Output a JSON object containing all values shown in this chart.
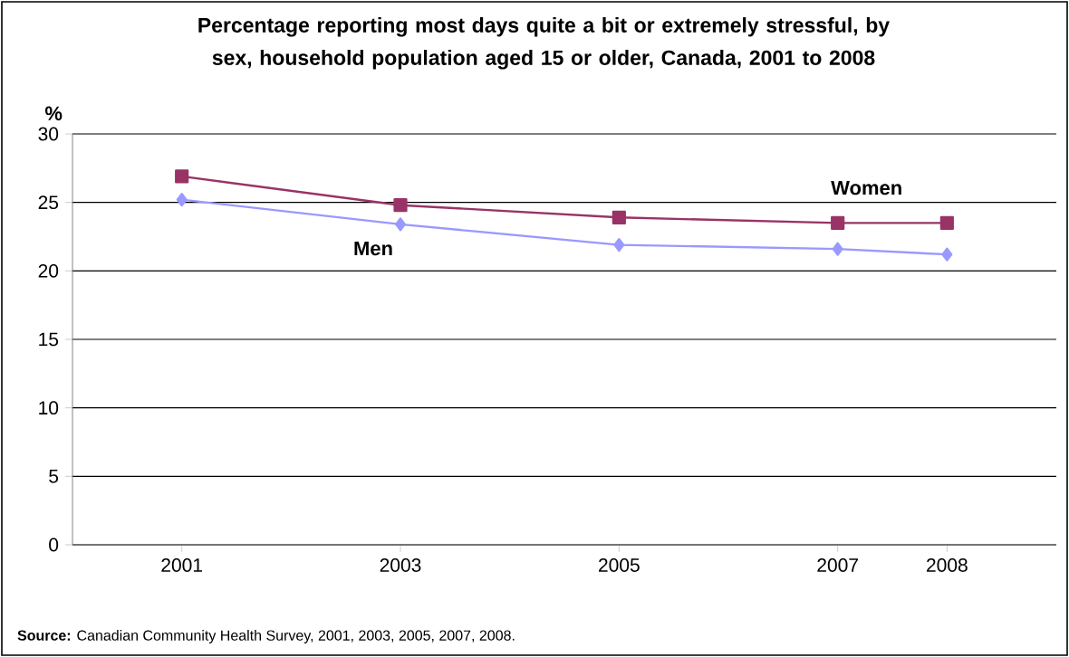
{
  "chart_data": {
    "type": "line",
    "title": "Percentage reporting most days quite a bit or extremely stressful, by sex, household population aged 15 or older, Canada, 2001 to 2008",
    "ylabel": "%",
    "x": [
      2001,
      2003,
      2005,
      2007,
      2008
    ],
    "series": [
      {
        "name": "Women",
        "color": "#993366",
        "marker": "square",
        "values": [
          26.9,
          24.8,
          23.9,
          23.5,
          23.5
        ]
      },
      {
        "name": "Men",
        "color": "#9999ff",
        "marker": "diamond",
        "values": [
          25.2,
          23.4,
          21.9,
          21.6,
          21.2
        ]
      }
    ],
    "xlim": [
      2000,
      2009
    ],
    "xticks": [
      2001,
      2003,
      2005,
      2007,
      2008
    ],
    "ylim": [
      0,
      30
    ],
    "yticks": [
      0,
      5,
      10,
      15,
      20,
      25,
      30
    ],
    "grid": "y",
    "legend": false,
    "line_style": "solid",
    "annotations": [
      "**Source:** Canadian Community Health Survey, 2001, 2003, 2005, 2007, 2008."
    ]
  }
}
